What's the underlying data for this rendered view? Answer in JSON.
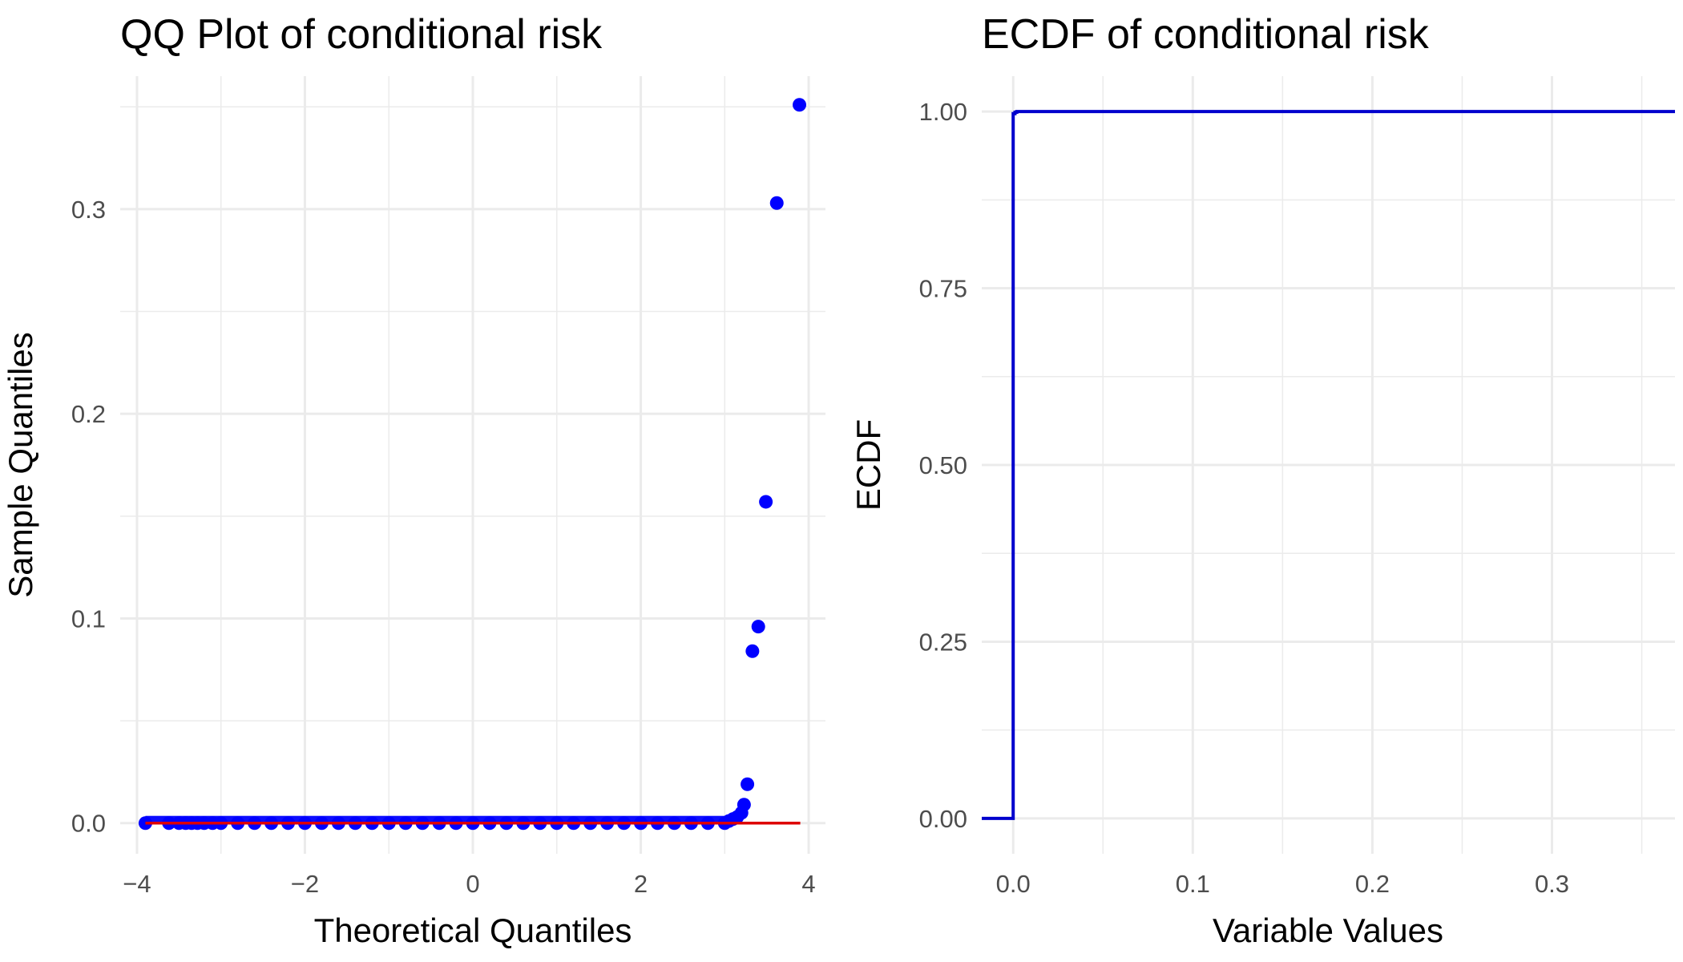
{
  "chart_data": [
    {
      "type": "scatter",
      "title": "QQ Plot of conditional risk",
      "xlabel": "Theoretical Quantiles",
      "ylabel": "Sample Quantiles",
      "xlim": [
        -4.2,
        4.2
      ],
      "ylim": [
        -0.015,
        0.365
      ],
      "x_ticks": [
        -4,
        -2,
        0,
        2,
        4
      ],
      "x_tick_labels": [
        "−4",
        "−2",
        "0",
        "2",
        "4"
      ],
      "y_ticks": [
        0.0,
        0.1,
        0.2,
        0.3
      ],
      "y_tick_labels": [
        "0.0",
        "0.1",
        "0.2",
        "0.3"
      ],
      "grid": true,
      "point_color": "#0000ff",
      "line_color": "#dd0000",
      "reference_line": {
        "x": [
          -3.9,
          3.9
        ],
        "y": [
          0.0,
          0.0
        ]
      },
      "series": [
        {
          "x": [
            -3.9,
            -3.62,
            -3.5,
            -3.42,
            -3.35,
            -3.28,
            -3.2,
            -3.1,
            -3.0,
            -2.8,
            -2.6,
            -2.4,
            -2.2,
            -2.0,
            -1.8,
            -1.6,
            -1.4,
            -1.2,
            -1.0,
            -0.8,
            -0.6,
            -0.4,
            -0.2,
            0.0,
            0.2,
            0.4,
            0.6,
            0.8,
            1.0,
            1.2,
            1.4,
            1.6,
            1.8,
            2.0,
            2.2,
            2.4,
            2.6,
            2.8,
            3.0,
            3.05,
            3.1,
            3.15,
            3.2,
            3.23,
            3.27,
            3.33,
            3.4,
            3.49,
            3.62,
            3.89
          ],
          "y": [
            0.0,
            0.0,
            0.0,
            0.0,
            0.0,
            0.0,
            0.0,
            0.0,
            0.0,
            0.0,
            0.0,
            0.0,
            0.0,
            0.0,
            0.0,
            0.0,
            0.0,
            0.0,
            0.0,
            0.0,
            0.0,
            0.0,
            0.0,
            0.0,
            0.0,
            0.0,
            0.0,
            0.0,
            0.0,
            0.0,
            0.0,
            0.0,
            0.0,
            0.0,
            0.0,
            0.0,
            0.0,
            0.0,
            0.0,
            0.001,
            0.002,
            0.003,
            0.005,
            0.009,
            0.019,
            0.084,
            0.096,
            0.157,
            0.303,
            0.351
          ]
        }
      ]
    },
    {
      "type": "line",
      "title": "ECDF of conditional risk",
      "xlabel": "Variable Values",
      "ylabel": "ECDF",
      "xlim": [
        -0.0175,
        0.3685
      ],
      "ylim": [
        -0.05,
        1.05
      ],
      "x_ticks": [
        0.0,
        0.1,
        0.2,
        0.3
      ],
      "x_tick_labels": [
        "0.0",
        "0.1",
        "0.2",
        "0.3"
      ],
      "y_ticks": [
        0.0,
        0.25,
        0.5,
        0.75,
        1.0
      ],
      "y_tick_labels": [
        "0.00",
        "0.25",
        "0.50",
        "0.75",
        "1.00"
      ],
      "grid": true,
      "line_color": "#0000cd",
      "series": [
        {
          "x": [
            -0.0175,
            0.0,
            0.0,
            0.001,
            0.001,
            0.002,
            0.002,
            0.3685
          ],
          "y": [
            0.0,
            0.0,
            0.997,
            0.997,
            0.999,
            0.999,
            1.0,
            1.0
          ]
        }
      ]
    }
  ]
}
